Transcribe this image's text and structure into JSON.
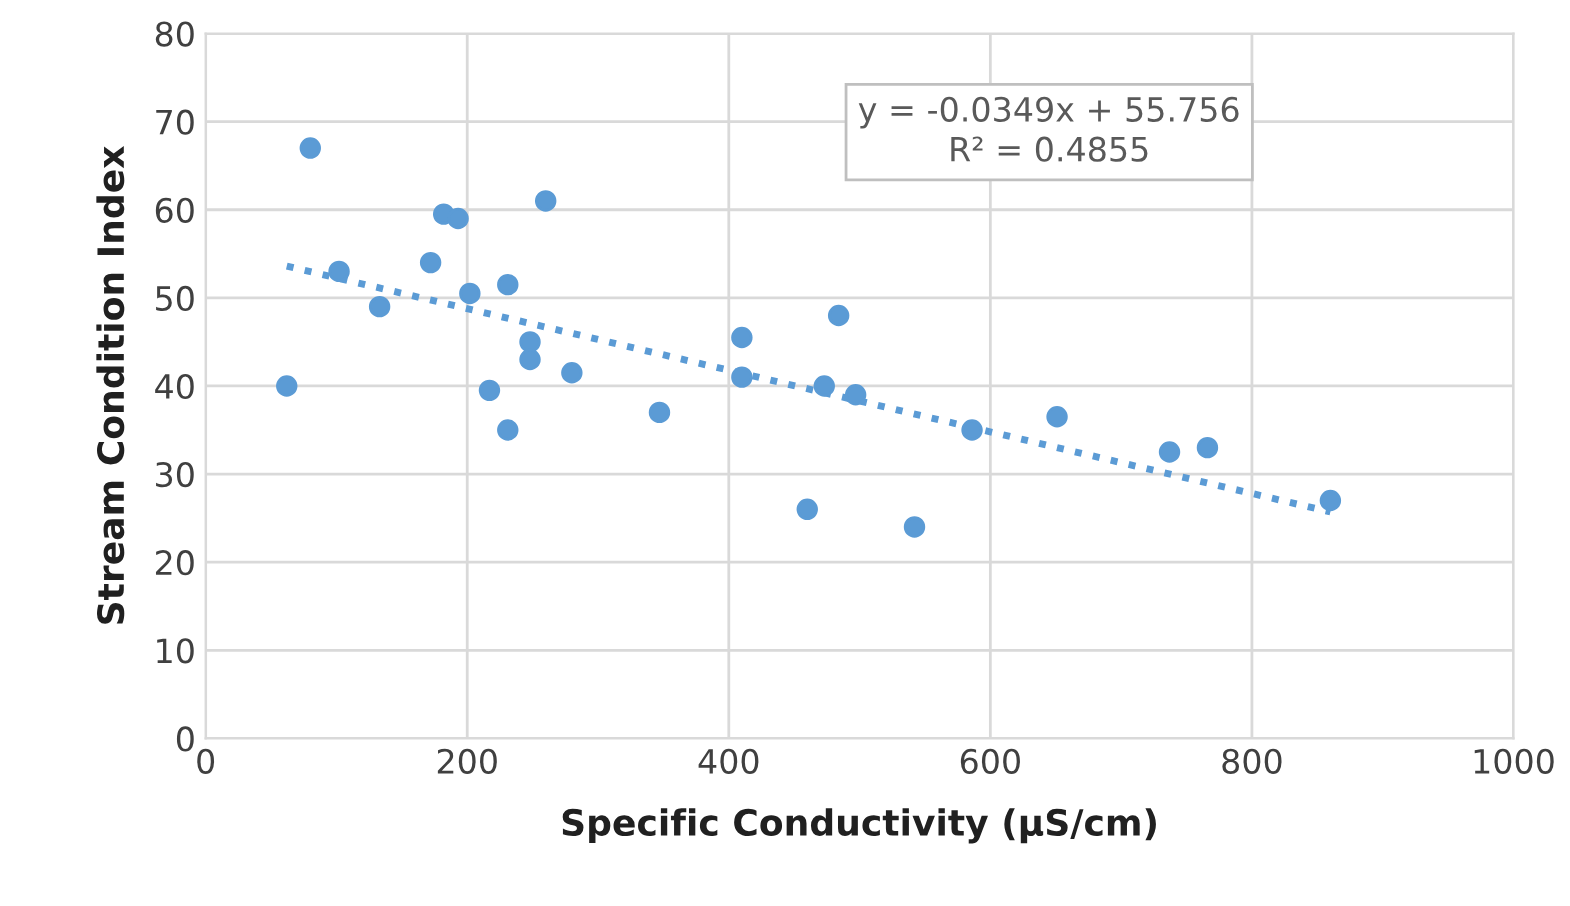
{
  "chart_data": {
    "type": "scatter",
    "xlabel": "Specific Conductivity (µS/cm)",
    "ylabel": "Stream Condition Index",
    "xlim": [
      0,
      1000
    ],
    "xticks": [
      0,
      200,
      400,
      600,
      800,
      1000
    ],
    "ylim": [
      0,
      80
    ],
    "yticks": [
      0,
      10,
      20,
      30,
      40,
      50,
      60,
      70,
      80
    ],
    "grid": true,
    "marker": "circle",
    "series": [
      {
        "color": "#5b9bd5",
        "x": [
          62,
          80,
          102,
          133,
          172,
          182,
          193,
          202,
          217,
          231,
          231,
          248,
          248,
          260,
          280,
          347,
          410,
          410,
          460,
          473,
          484,
          497,
          542,
          586,
          651,
          737,
          766,
          860
        ],
        "values": [
          40,
          67,
          53,
          49,
          54,
          59.5,
          59,
          50.5,
          39.5,
          51.5,
          35,
          45,
          43,
          61,
          41.5,
          37,
          45.5,
          41,
          26,
          40,
          48,
          39,
          24,
          35,
          36.5,
          32.5,
          33,
          27
        ]
      },
      {
        "type": "line",
        "color": "#5b9bd5",
        "line_style": "dotted",
        "marker": "none",
        "x": [
          62,
          860
        ],
        "values": [
          53.6,
          25.7
        ]
      }
    ],
    "annotations": [
      "y = -0.0349x + 55.756\nR² = 0.4855"
    ]
  }
}
